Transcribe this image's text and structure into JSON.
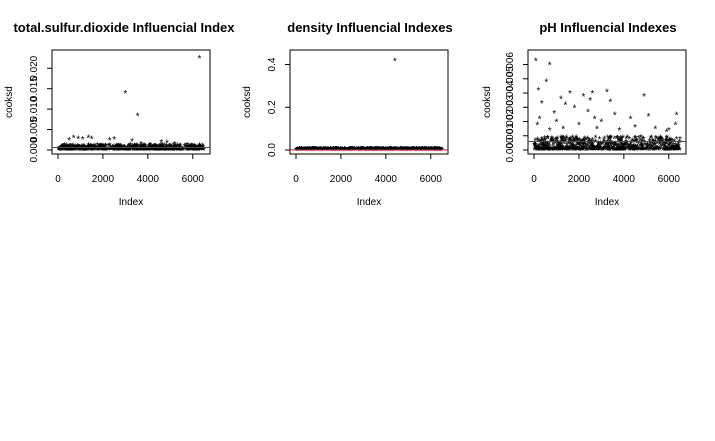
{
  "chart_data": [
    {
      "type": "scatter",
      "title": "total.sulfur.dioxide Influencial Index",
      "xlabel": "Index",
      "ylabel": "cooksd",
      "xlim": [
        0,
        6500
      ],
      "ylim": [
        0,
        0.023
      ],
      "xticks": [
        0,
        2000,
        4000,
        6000
      ],
      "xtick_labels": [
        "0",
        "2000",
        "4000",
        "6000"
      ],
      "yticks": [
        0,
        0.005,
        0.01,
        0.015,
        0.02
      ],
      "ytick_labels": [
        "0.000",
        "0.005",
        "0.010",
        "0.015",
        "0.020"
      ],
      "marker": "*",
      "cutoff": {
        "value": 0.0006,
        "color": "#ff0000"
      },
      "points": [
        [
          6300,
          0.0225
        ],
        [
          3000,
          0.014
        ],
        [
          3550,
          0.0085
        ],
        [
          500,
          0.0025
        ],
        [
          700,
          0.003
        ],
        [
          900,
          0.0028
        ],
        [
          1100,
          0.0027
        ],
        [
          1350,
          0.003
        ],
        [
          1500,
          0.0028
        ],
        [
          2300,
          0.0024
        ],
        [
          2500,
          0.0027
        ],
        [
          3300,
          0.0022
        ],
        [
          3700,
          0.0015
        ],
        [
          4600,
          0.002
        ],
        [
          4850,
          0.0018
        ],
        [
          5200,
          0.0015
        ],
        [
          5700,
          0.0012
        ],
        [
          6000,
          0.001
        ]
      ]
    },
    {
      "type": "scatter",
      "title": "density Influencial Indexes",
      "xlabel": "Index",
      "ylabel": "cooksd",
      "xlim": [
        0,
        6500
      ],
      "ylim": [
        0,
        0.44
      ],
      "xticks": [
        0,
        2000,
        4000,
        6000
      ],
      "xtick_labels": [
        "0",
        "2000",
        "4000",
        "6000"
      ],
      "yticks": [
        0,
        0.2,
        0.4
      ],
      "ytick_labels": [
        "0.0",
        "0.2",
        "0.4"
      ],
      "marker": "*",
      "cutoff": {
        "value": 0.0006,
        "color": "#ff0000"
      },
      "points": [
        [
          4400,
          0.42
        ],
        [
          3200,
          0.004
        ],
        [
          1800,
          0.003
        ],
        [
          5000,
          0.003
        ]
      ]
    },
    {
      "type": "scatter",
      "title": "pH Influencial Indexes",
      "xlabel": "Index",
      "ylabel": "cooksd",
      "xlim": [
        0,
        6500
      ],
      "ylim": [
        0,
        0.0066
      ],
      "xticks": [
        0,
        2000,
        4000,
        6000
      ],
      "xtick_labels": [
        "0",
        "2000",
        "4000",
        "6000"
      ],
      "yticks": [
        0,
        0.001,
        0.002,
        0.003,
        0.004,
        0.005,
        0.006
      ],
      "ytick_labels": [
        "0.000",
        "0.001",
        "0.002",
        "0.003",
        "0.004",
        "0.005",
        "0.006"
      ],
      "marker": "*",
      "cutoff": {
        "value": 0.0006,
        "color": "#ff0000"
      },
      "points": [
        [
          80,
          0.0063
        ],
        [
          700,
          0.006
        ],
        [
          550,
          0.0048
        ],
        [
          200,
          0.0042
        ],
        [
          1200,
          0.0036
        ],
        [
          900,
          0.0026
        ],
        [
          1600,
          0.004
        ],
        [
          2200,
          0.0038
        ],
        [
          2600,
          0.004
        ],
        [
          2500,
          0.0035
        ],
        [
          3250,
          0.0041
        ],
        [
          3400,
          0.0034
        ],
        [
          4900,
          0.0038
        ],
        [
          350,
          0.0033
        ],
        [
          1400,
          0.0032
        ],
        [
          1800,
          0.003
        ],
        [
          2400,
          0.0027
        ],
        [
          3600,
          0.0025
        ],
        [
          4300,
          0.0022
        ],
        [
          5100,
          0.0024
        ],
        [
          6350,
          0.0025
        ],
        [
          6300,
          0.0018
        ],
        [
          6000,
          0.0014
        ],
        [
          5900,
          0.0013
        ],
        [
          1000,
          0.002
        ],
        [
          2000,
          0.0018
        ],
        [
          3000,
          0.002
        ],
        [
          4500,
          0.0016
        ],
        [
          250,
          0.0022
        ],
        [
          1300,
          0.0015
        ],
        [
          2800,
          0.0015
        ],
        [
          3800,
          0.0014
        ],
        [
          5400,
          0.0015
        ],
        [
          700,
          0.0014
        ],
        [
          150,
          0.0018
        ],
        [
          2700,
          0.0022
        ]
      ]
    }
  ]
}
